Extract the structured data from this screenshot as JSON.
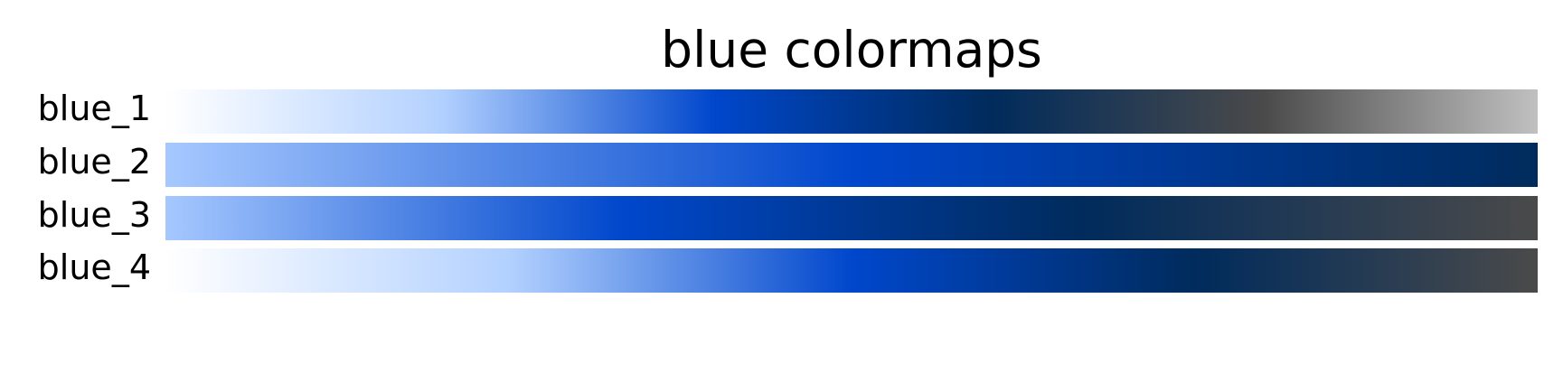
{
  "chart_data": {
    "type": "colormap-swatches",
    "title": "blue colormaps",
    "colormaps": [
      {
        "name": "blue_1",
        "colors": [
          "#ffffff",
          "#b3d1ff",
          "#0047cc",
          "#002b5c",
          "#4a4a4a",
          "#c0c0c0"
        ]
      },
      {
        "name": "blue_2",
        "colors": [
          "#a6c8ff",
          "#0047cc",
          "#002b5c"
        ]
      },
      {
        "name": "blue_3",
        "colors": [
          "#a6c8ff",
          "#0047cc",
          "#002b5c",
          "#4a4a4a"
        ]
      },
      {
        "name": "blue_4",
        "colors": [
          "#ffffff",
          "#b3d1ff",
          "#0047cc",
          "#002b5c",
          "#4a4a4a"
        ]
      }
    ]
  }
}
